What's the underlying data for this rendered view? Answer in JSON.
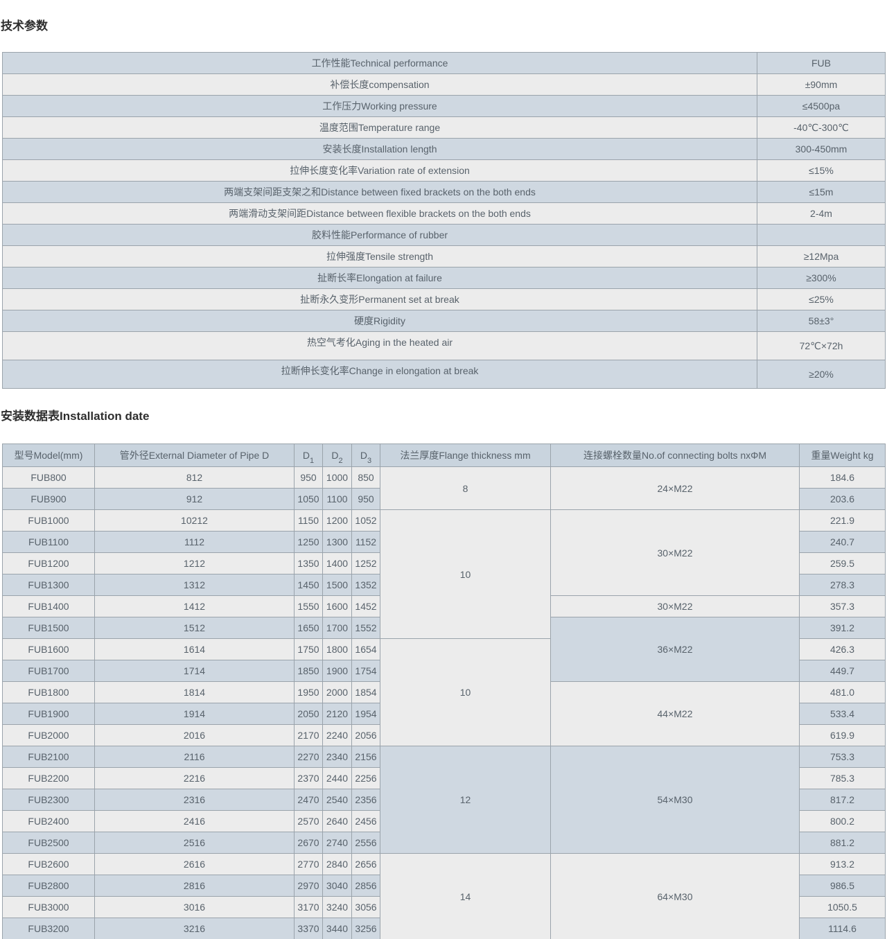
{
  "headings": {
    "tech_params": "技术参数",
    "installation": "安装数据表Installation date"
  },
  "colors": {
    "row_light": "#ececec",
    "row_blue": "#cfd8e1",
    "table2_header_bg": "#c9d4de",
    "border": "#9aa3ab",
    "cell_text": "#58626b",
    "heading_text": "#2e2e2e"
  },
  "tech_table": {
    "rows": [
      {
        "label": "工作性能Technical performance",
        "value": "FUB",
        "shade": "blue",
        "tall": false
      },
      {
        "label": "补偿长度compensation",
        "value": "±90mm",
        "shade": "light",
        "tall": false
      },
      {
        "label": "工作压力Working pressure",
        "value": "≤4500pa",
        "shade": "blue",
        "tall": false
      },
      {
        "label": "温度范围Temperature range",
        "value": "-40℃-300℃",
        "shade": "light",
        "tall": false
      },
      {
        "label": "安装长度Installation length",
        "value": "300-450mm",
        "shade": "blue",
        "tall": false
      },
      {
        "label": "拉伸长度变化率Variation rate of extension",
        "value": "≤15%",
        "shade": "light",
        "tall": false
      },
      {
        "label": "两端支架间距支架之和Distance between fixed brackets on the both ends",
        "value": "≤15m",
        "shade": "blue",
        "tall": false
      },
      {
        "label": "两端滑动支架间距Distance between flexible brackets on the both ends",
        "value": "2-4m",
        "shade": "light",
        "tall": false
      },
      {
        "label": "胶料性能Performance of rubber",
        "value": "",
        "shade": "blue",
        "tall": false
      },
      {
        "label": "拉伸强度Tensile strength",
        "value": "≥12Mpa",
        "shade": "light",
        "tall": false
      },
      {
        "label": "扯断长率Elongation at failure",
        "value": "≥300%",
        "shade": "blue",
        "tall": false
      },
      {
        "label": "扯断永久变形Permanent set at break",
        "value": "≤25%",
        "shade": "light",
        "tall": false
      },
      {
        "label": "硬度Rigidity",
        "value": "58±3°",
        "shade": "blue",
        "tall": false
      },
      {
        "label": "热空气考化Aging in the heated air",
        "value": "72℃×72h",
        "shade": "light",
        "tall": true
      },
      {
        "label": "拉断伸长变化率Change in elongation at break",
        "value": "≥20%",
        "shade": "blue",
        "tall": true
      }
    ]
  },
  "install_table": {
    "headers": {
      "model": "型号Model(mm)",
      "diameter": "管外径External Diameter of Pipe D",
      "d_cols": [
        {
          "base": "D",
          "sub": "1"
        },
        {
          "base": "D",
          "sub": "2"
        },
        {
          "base": "D",
          "sub": "3"
        }
      ],
      "flange": "法兰厚度Flange thickness mm",
      "bolts": "连接螺栓数量No.of connecting bolts nxΦM",
      "weight": "重量Weight kg"
    },
    "rows": [
      {
        "model": "FUB800",
        "diameter": "812",
        "d1": "950",
        "d2": "1000",
        "d3": "850",
        "weight": "184.6",
        "shade": "light"
      },
      {
        "model": "FUB900",
        "diameter": "912",
        "d1": "1050",
        "d2": "1100",
        "d3": "950",
        "weight": "203.6",
        "shade": "blue"
      },
      {
        "model": "FUB1000",
        "diameter": "10212",
        "d1": "1150",
        "d2": "1200",
        "d3": "1052",
        "weight": "221.9",
        "shade": "light"
      },
      {
        "model": "FUB1100",
        "diameter": "1112",
        "d1": "1250",
        "d2": "1300",
        "d3": "1152",
        "weight": "240.7",
        "shade": "blue"
      },
      {
        "model": "FUB1200",
        "diameter": "1212",
        "d1": "1350",
        "d2": "1400",
        "d3": "1252",
        "weight": "259.5",
        "shade": "light"
      },
      {
        "model": "FUB1300",
        "diameter": "1312",
        "d1": "1450",
        "d2": "1500",
        "d3": "1352",
        "weight": "278.3",
        "shade": "blue"
      },
      {
        "model": "FUB1400",
        "diameter": "1412",
        "d1": "1550",
        "d2": "1600",
        "d3": "1452",
        "weight": "357.3",
        "shade": "light"
      },
      {
        "model": "FUB1500",
        "diameter": "1512",
        "d1": "1650",
        "d2": "1700",
        "d3": "1552",
        "weight": "391.2",
        "shade": "blue"
      },
      {
        "model": "FUB1600",
        "diameter": "1614",
        "d1": "1750",
        "d2": "1800",
        "d3": "1654",
        "weight": "426.3",
        "shade": "light"
      },
      {
        "model": "FUB1700",
        "diameter": "1714",
        "d1": "1850",
        "d2": "1900",
        "d3": "1754",
        "weight": "449.7",
        "shade": "blue"
      },
      {
        "model": "FUB1800",
        "diameter": "1814",
        "d1": "1950",
        "d2": "2000",
        "d3": "1854",
        "weight": "481.0",
        "shade": "light"
      },
      {
        "model": "FUB1900",
        "diameter": "1914",
        "d1": "2050",
        "d2": "2120",
        "d3": "1954",
        "weight": "533.4",
        "shade": "blue"
      },
      {
        "model": "FUB2000",
        "diameter": "2016",
        "d1": "2170",
        "d2": "2240",
        "d3": "2056",
        "weight": "619.9",
        "shade": "light"
      },
      {
        "model": "FUB2100",
        "diameter": "2116",
        "d1": "2270",
        "d2": "2340",
        "d3": "2156",
        "weight": "753.3",
        "shade": "blue"
      },
      {
        "model": "FUB2200",
        "diameter": "2216",
        "d1": "2370",
        "d2": "2440",
        "d3": "2256",
        "weight": "785.3",
        "shade": "light"
      },
      {
        "model": "FUB2300",
        "diameter": "2316",
        "d1": "2470",
        "d2": "2540",
        "d3": "2356",
        "weight": "817.2",
        "shade": "blue"
      },
      {
        "model": "FUB2400",
        "diameter": "2416",
        "d1": "2570",
        "d2": "2640",
        "d3": "2456",
        "weight": "800.2",
        "shade": "light"
      },
      {
        "model": "FUB2500",
        "diameter": "2516",
        "d1": "2670",
        "d2": "2740",
        "d3": "2556",
        "weight": "881.2",
        "shade": "blue"
      },
      {
        "model": "FUB2600",
        "diameter": "2616",
        "d1": "2770",
        "d2": "2840",
        "d3": "2656",
        "weight": "913.2",
        "shade": "light"
      },
      {
        "model": "FUB2800",
        "diameter": "2816",
        "d1": "2970",
        "d2": "3040",
        "d3": "2856",
        "weight": "986.5",
        "shade": "blue"
      },
      {
        "model": "FUB3000",
        "diameter": "3016",
        "d1": "3170",
        "d2": "3240",
        "d3": "3056",
        "weight": "1050.5",
        "shade": "light"
      },
      {
        "model": "FUB3200",
        "diameter": "3216",
        "d1": "3370",
        "d2": "3440",
        "d3": "3256",
        "weight": "1114.6",
        "shade": "blue"
      }
    ],
    "flange_groups": [
      {
        "value": "8",
        "start": 0,
        "span": 2,
        "shade": "light"
      },
      {
        "value": "10",
        "start": 2,
        "span": 6,
        "shade": "light"
      },
      {
        "value": "10",
        "start": 8,
        "span": 5,
        "shade": "light"
      },
      {
        "value": "12",
        "start": 13,
        "span": 5,
        "shade": "blue"
      },
      {
        "value": "14",
        "start": 18,
        "span": 4,
        "shade": "light"
      }
    ],
    "bolt_groups": [
      {
        "value": "24×M22",
        "start": 0,
        "span": 2,
        "shade": "light"
      },
      {
        "value": "30×M22",
        "start": 2,
        "span": 4,
        "shade": "light"
      },
      {
        "value": "30×M22",
        "start": 6,
        "span": 1,
        "shade": "light"
      },
      {
        "value": "36×M22",
        "start": 7,
        "span": 3,
        "shade": "blue"
      },
      {
        "value": "44×M22",
        "start": 10,
        "span": 3,
        "shade": "light"
      },
      {
        "value": "54×M30",
        "start": 13,
        "span": 5,
        "shade": "blue"
      },
      {
        "value": "64×M30",
        "start": 18,
        "span": 4,
        "shade": "light"
      }
    ]
  }
}
